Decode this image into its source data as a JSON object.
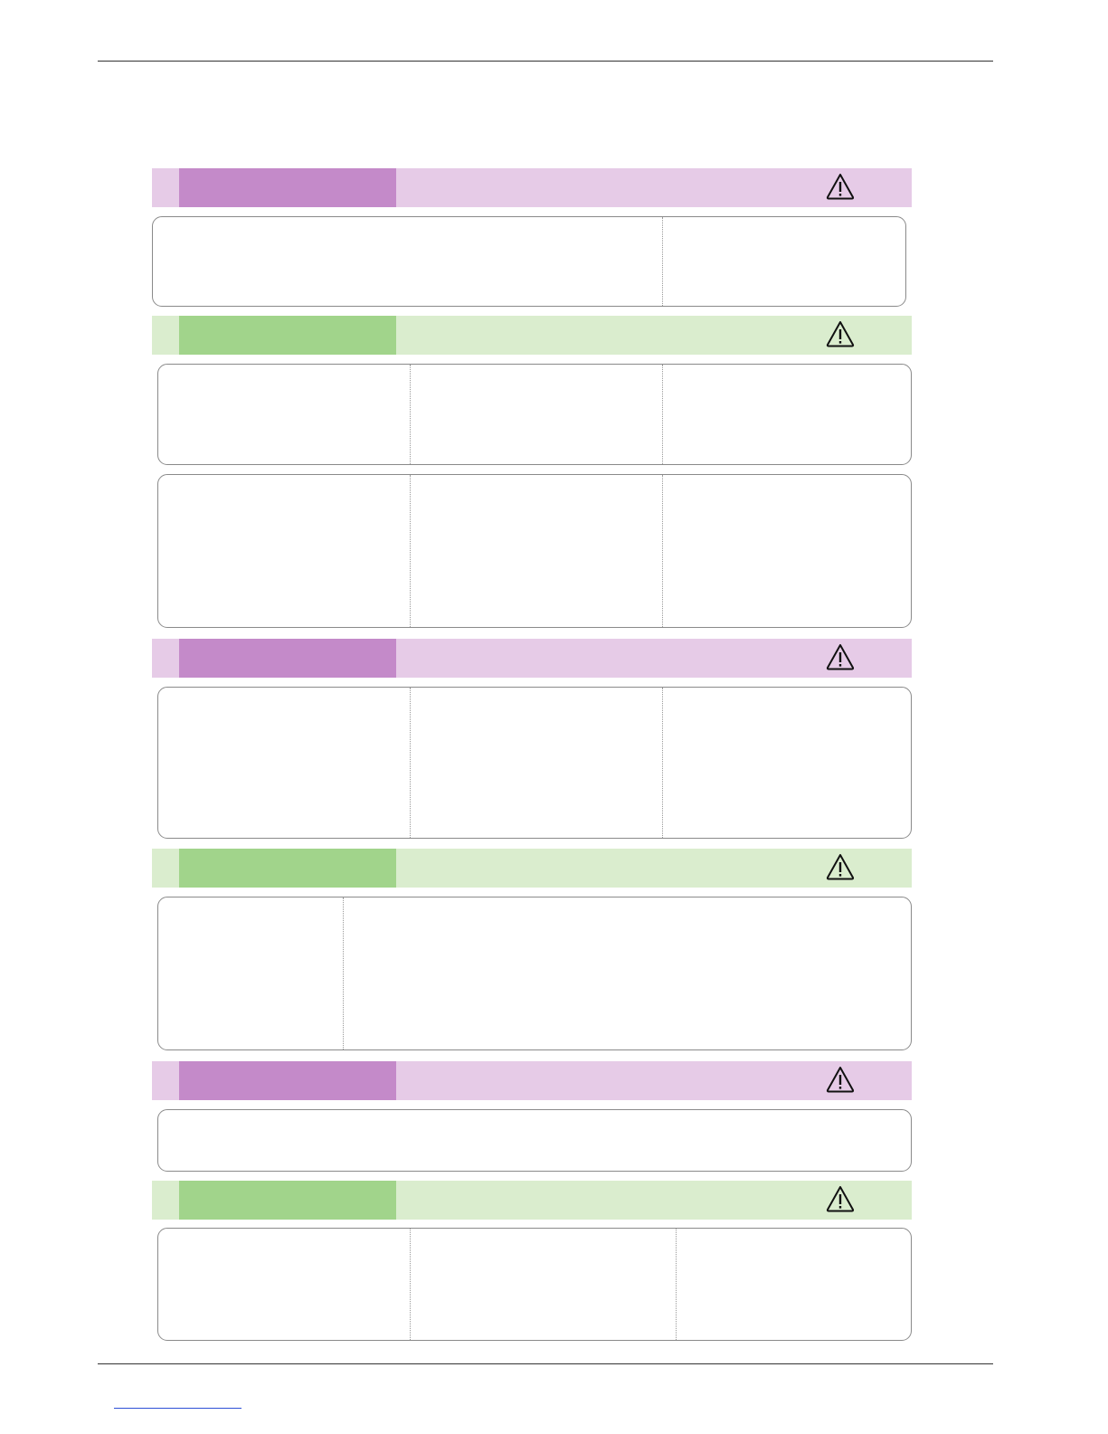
{
  "header": {},
  "sections": [
    {
      "color": "purple",
      "icon": "warning-triangle-icon"
    },
    {
      "color": "green",
      "icon": "warning-triangle-icon"
    },
    {
      "color": "purple",
      "icon": "warning-triangle-icon"
    },
    {
      "color": "green",
      "icon": "warning-triangle-icon"
    },
    {
      "color": "purple",
      "icon": "warning-triangle-icon"
    },
    {
      "color": "green",
      "icon": "warning-triangle-icon"
    }
  ],
  "colors": {
    "purple_tab": "#c48ac9",
    "purple_band": "#e6cbe7",
    "green_tab": "#a1d48b",
    "green_band": "#daedce",
    "rule": "#333333",
    "footer_link": "#2d4fd6"
  },
  "footer": {}
}
